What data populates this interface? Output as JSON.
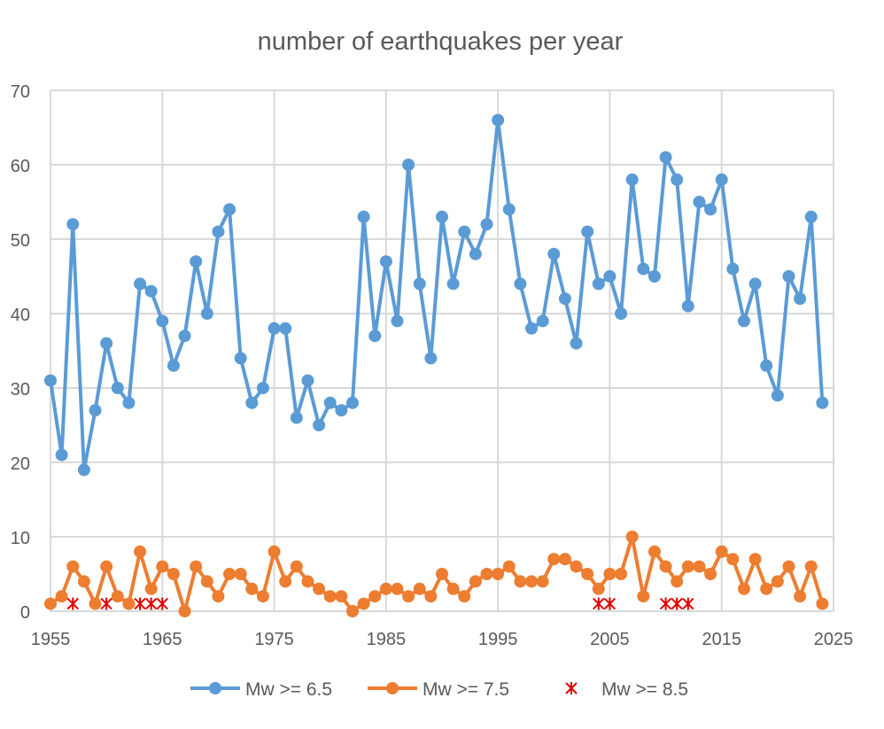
{
  "chart_data": {
    "type": "line",
    "title": "number of earthquakes per year",
    "xlabel": "",
    "ylabel": "",
    "xlim": [
      1955,
      2025
    ],
    "ylim": [
      0,
      70
    ],
    "x_ticks": [
      1955,
      1965,
      1975,
      1985,
      1995,
      2005,
      2015,
      2025
    ],
    "y_ticks": [
      0,
      10,
      20,
      30,
      40,
      50,
      60,
      70
    ],
    "grid": true,
    "legend_position": "bottom",
    "x": [
      1955,
      1956,
      1957,
      1958,
      1959,
      1960,
      1961,
      1962,
      1963,
      1964,
      1965,
      1966,
      1967,
      1968,
      1969,
      1970,
      1971,
      1972,
      1973,
      1974,
      1975,
      1976,
      1977,
      1978,
      1979,
      1980,
      1981,
      1982,
      1983,
      1984,
      1985,
      1986,
      1987,
      1988,
      1989,
      1990,
      1991,
      1992,
      1993,
      1994,
      1995,
      1996,
      1997,
      1998,
      1999,
      2000,
      2001,
      2002,
      2003,
      2004,
      2005,
      2006,
      2007,
      2008,
      2009,
      2010,
      2011,
      2012,
      2013,
      2014,
      2015,
      2016,
      2017,
      2018,
      2019,
      2020,
      2021,
      2022,
      2023,
      2024
    ],
    "series": [
      {
        "name": "Mw >= 6.5",
        "color": "#5B9BD5",
        "marker": "circle",
        "line": true,
        "values": [
          31,
          21,
          52,
          19,
          27,
          36,
          30,
          28,
          44,
          43,
          39,
          33,
          37,
          47,
          40,
          51,
          54,
          34,
          28,
          30,
          38,
          38,
          26,
          31,
          25,
          28,
          27,
          28,
          53,
          37,
          47,
          39,
          60,
          44,
          34,
          53,
          44,
          51,
          48,
          52,
          66,
          54,
          44,
          38,
          39,
          48,
          42,
          36,
          51,
          44,
          45,
          40,
          58,
          46,
          45,
          61,
          58,
          41,
          55,
          54,
          58,
          46,
          39,
          44,
          33,
          29,
          45,
          42,
          53,
          28
        ]
      },
      {
        "name": "Mw >= 7.5",
        "color": "#ED7D31",
        "marker": "circle",
        "line": true,
        "values": [
          1,
          2,
          6,
          4,
          1,
          6,
          2,
          1,
          8,
          3,
          6,
          5,
          0,
          6,
          4,
          2,
          5,
          5,
          3,
          2,
          8,
          4,
          6,
          4,
          3,
          2,
          2,
          0,
          1,
          2,
          3,
          3,
          2,
          3,
          2,
          5,
          3,
          2,
          4,
          5,
          5,
          6,
          4,
          4,
          4,
          7,
          7,
          6,
          5,
          3,
          5,
          5,
          10,
          2,
          8,
          6,
          4,
          6,
          6,
          5,
          8,
          7,
          3,
          7,
          3,
          4,
          6,
          2,
          6,
          1
        ]
      },
      {
        "name": "Mw >= 8.5",
        "color": "#E00000",
        "marker": "star",
        "line": false,
        "points": [
          [
            1957,
            1
          ],
          [
            1960,
            1
          ],
          [
            1963,
            1
          ],
          [
            1964,
            1
          ],
          [
            1965,
            1
          ],
          [
            2004,
            1
          ],
          [
            2005,
            1
          ],
          [
            2010,
            1
          ],
          [
            2011,
            1
          ],
          [
            2012,
            1
          ]
        ]
      }
    ]
  }
}
